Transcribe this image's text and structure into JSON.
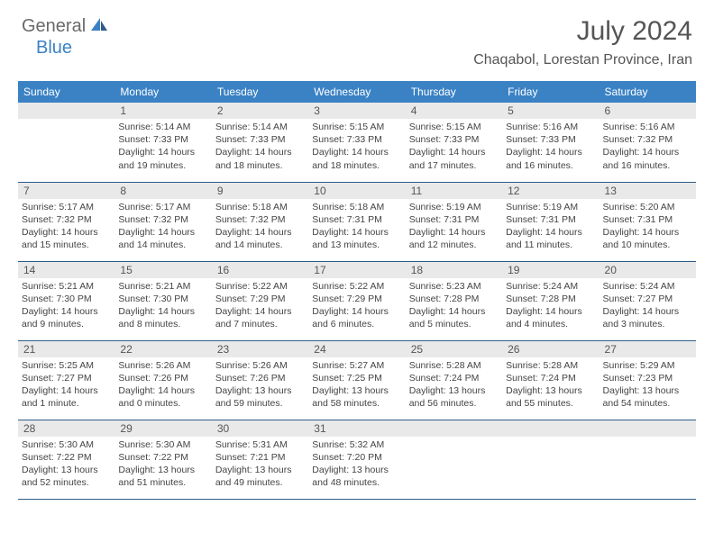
{
  "brand": {
    "part1": "General",
    "part2": "Blue"
  },
  "title": "July 2024",
  "location": "Chaqabol, Lorestan Province, Iran",
  "colors": {
    "header_bg": "#3b82c4",
    "header_text": "#ffffff",
    "daybar_bg": "#e9e9e9",
    "row_border": "#2e5d8a",
    "body_text": "#444444",
    "title_text": "#555555"
  },
  "day_names": [
    "Sunday",
    "Monday",
    "Tuesday",
    "Wednesday",
    "Thursday",
    "Friday",
    "Saturday"
  ],
  "weeks": [
    [
      null,
      {
        "n": "1",
        "sr": "Sunrise: 5:14 AM",
        "ss": "Sunset: 7:33 PM",
        "d1": "Daylight: 14 hours",
        "d2": "and 19 minutes."
      },
      {
        "n": "2",
        "sr": "Sunrise: 5:14 AM",
        "ss": "Sunset: 7:33 PM",
        "d1": "Daylight: 14 hours",
        "d2": "and 18 minutes."
      },
      {
        "n": "3",
        "sr": "Sunrise: 5:15 AM",
        "ss": "Sunset: 7:33 PM",
        "d1": "Daylight: 14 hours",
        "d2": "and 18 minutes."
      },
      {
        "n": "4",
        "sr": "Sunrise: 5:15 AM",
        "ss": "Sunset: 7:33 PM",
        "d1": "Daylight: 14 hours",
        "d2": "and 17 minutes."
      },
      {
        "n": "5",
        "sr": "Sunrise: 5:16 AM",
        "ss": "Sunset: 7:33 PM",
        "d1": "Daylight: 14 hours",
        "d2": "and 16 minutes."
      },
      {
        "n": "6",
        "sr": "Sunrise: 5:16 AM",
        "ss": "Sunset: 7:32 PM",
        "d1": "Daylight: 14 hours",
        "d2": "and 16 minutes."
      }
    ],
    [
      {
        "n": "7",
        "sr": "Sunrise: 5:17 AM",
        "ss": "Sunset: 7:32 PM",
        "d1": "Daylight: 14 hours",
        "d2": "and 15 minutes."
      },
      {
        "n": "8",
        "sr": "Sunrise: 5:17 AM",
        "ss": "Sunset: 7:32 PM",
        "d1": "Daylight: 14 hours",
        "d2": "and 14 minutes."
      },
      {
        "n": "9",
        "sr": "Sunrise: 5:18 AM",
        "ss": "Sunset: 7:32 PM",
        "d1": "Daylight: 14 hours",
        "d2": "and 14 minutes."
      },
      {
        "n": "10",
        "sr": "Sunrise: 5:18 AM",
        "ss": "Sunset: 7:31 PM",
        "d1": "Daylight: 14 hours",
        "d2": "and 13 minutes."
      },
      {
        "n": "11",
        "sr": "Sunrise: 5:19 AM",
        "ss": "Sunset: 7:31 PM",
        "d1": "Daylight: 14 hours",
        "d2": "and 12 minutes."
      },
      {
        "n": "12",
        "sr": "Sunrise: 5:19 AM",
        "ss": "Sunset: 7:31 PM",
        "d1": "Daylight: 14 hours",
        "d2": "and 11 minutes."
      },
      {
        "n": "13",
        "sr": "Sunrise: 5:20 AM",
        "ss": "Sunset: 7:31 PM",
        "d1": "Daylight: 14 hours",
        "d2": "and 10 minutes."
      }
    ],
    [
      {
        "n": "14",
        "sr": "Sunrise: 5:21 AM",
        "ss": "Sunset: 7:30 PM",
        "d1": "Daylight: 14 hours",
        "d2": "and 9 minutes."
      },
      {
        "n": "15",
        "sr": "Sunrise: 5:21 AM",
        "ss": "Sunset: 7:30 PM",
        "d1": "Daylight: 14 hours",
        "d2": "and 8 minutes."
      },
      {
        "n": "16",
        "sr": "Sunrise: 5:22 AM",
        "ss": "Sunset: 7:29 PM",
        "d1": "Daylight: 14 hours",
        "d2": "and 7 minutes."
      },
      {
        "n": "17",
        "sr": "Sunrise: 5:22 AM",
        "ss": "Sunset: 7:29 PM",
        "d1": "Daylight: 14 hours",
        "d2": "and 6 minutes."
      },
      {
        "n": "18",
        "sr": "Sunrise: 5:23 AM",
        "ss": "Sunset: 7:28 PM",
        "d1": "Daylight: 14 hours",
        "d2": "and 5 minutes."
      },
      {
        "n": "19",
        "sr": "Sunrise: 5:24 AM",
        "ss": "Sunset: 7:28 PM",
        "d1": "Daylight: 14 hours",
        "d2": "and 4 minutes."
      },
      {
        "n": "20",
        "sr": "Sunrise: 5:24 AM",
        "ss": "Sunset: 7:27 PM",
        "d1": "Daylight: 14 hours",
        "d2": "and 3 minutes."
      }
    ],
    [
      {
        "n": "21",
        "sr": "Sunrise: 5:25 AM",
        "ss": "Sunset: 7:27 PM",
        "d1": "Daylight: 14 hours",
        "d2": "and 1 minute."
      },
      {
        "n": "22",
        "sr": "Sunrise: 5:26 AM",
        "ss": "Sunset: 7:26 PM",
        "d1": "Daylight: 14 hours",
        "d2": "and 0 minutes."
      },
      {
        "n": "23",
        "sr": "Sunrise: 5:26 AM",
        "ss": "Sunset: 7:26 PM",
        "d1": "Daylight: 13 hours",
        "d2": "and 59 minutes."
      },
      {
        "n": "24",
        "sr": "Sunrise: 5:27 AM",
        "ss": "Sunset: 7:25 PM",
        "d1": "Daylight: 13 hours",
        "d2": "and 58 minutes."
      },
      {
        "n": "25",
        "sr": "Sunrise: 5:28 AM",
        "ss": "Sunset: 7:24 PM",
        "d1": "Daylight: 13 hours",
        "d2": "and 56 minutes."
      },
      {
        "n": "26",
        "sr": "Sunrise: 5:28 AM",
        "ss": "Sunset: 7:24 PM",
        "d1": "Daylight: 13 hours",
        "d2": "and 55 minutes."
      },
      {
        "n": "27",
        "sr": "Sunrise: 5:29 AM",
        "ss": "Sunset: 7:23 PM",
        "d1": "Daylight: 13 hours",
        "d2": "and 54 minutes."
      }
    ],
    [
      {
        "n": "28",
        "sr": "Sunrise: 5:30 AM",
        "ss": "Sunset: 7:22 PM",
        "d1": "Daylight: 13 hours",
        "d2": "and 52 minutes."
      },
      {
        "n": "29",
        "sr": "Sunrise: 5:30 AM",
        "ss": "Sunset: 7:22 PM",
        "d1": "Daylight: 13 hours",
        "d2": "and 51 minutes."
      },
      {
        "n": "30",
        "sr": "Sunrise: 5:31 AM",
        "ss": "Sunset: 7:21 PM",
        "d1": "Daylight: 13 hours",
        "d2": "and 49 minutes."
      },
      {
        "n": "31",
        "sr": "Sunrise: 5:32 AM",
        "ss": "Sunset: 7:20 PM",
        "d1": "Daylight: 13 hours",
        "d2": "and 48 minutes."
      },
      null,
      null,
      null
    ]
  ]
}
